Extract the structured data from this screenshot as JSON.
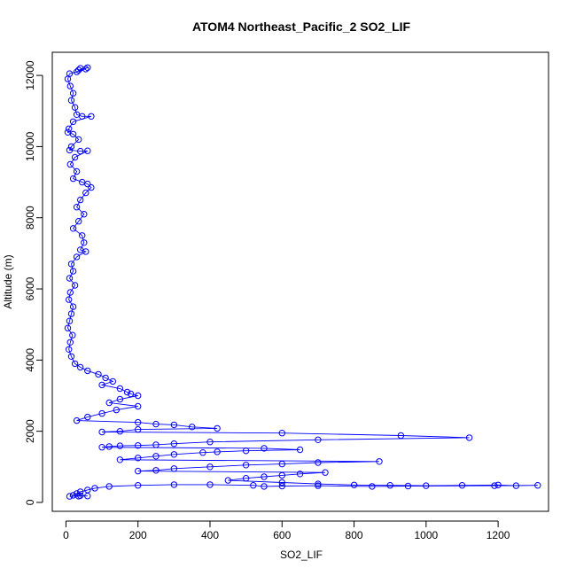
{
  "chart_data": {
    "type": "scatter",
    "title": "ATOM4 Northeast_Pacific_2 SO2_LIF",
    "xlabel": "SO2_LIF",
    "ylabel": "Altitude (m)",
    "xlim": [
      -38,
      1340
    ],
    "ylim": [
      -250,
      12650
    ],
    "xticks": [
      0,
      200,
      400,
      600,
      800,
      1000,
      1200
    ],
    "yticks": [
      0,
      2000,
      4000,
      6000,
      8000,
      10000,
      12000
    ],
    "grid": false,
    "legend": "none",
    "marker": "open-circle",
    "connected": true,
    "colors": {
      "series": "#0000ff",
      "axis": "#000000"
    },
    "series": [
      {
        "description_profile": "vertical profile, near-zero values aloft, spikes below 4000 m",
        "points": [
          [
            40,
            12200
          ],
          [
            55,
            12180
          ],
          [
            35,
            12150
          ],
          [
            60,
            12220
          ],
          [
            30,
            12100
          ],
          [
            10,
            12050
          ],
          [
            5,
            11900
          ],
          [
            12,
            11700
          ],
          [
            20,
            11500
          ],
          [
            15,
            11300
          ],
          [
            25,
            11100
          ],
          [
            30,
            10900
          ],
          [
            45,
            10850
          ],
          [
            70,
            10850
          ],
          [
            20,
            10700
          ],
          [
            8,
            10500
          ],
          [
            5,
            10400
          ],
          [
            20,
            10350
          ],
          [
            35,
            10200
          ],
          [
            15,
            10000
          ],
          [
            10,
            9900
          ],
          [
            40,
            9870
          ],
          [
            60,
            9880
          ],
          [
            25,
            9700
          ],
          [
            12,
            9500
          ],
          [
            30,
            9300
          ],
          [
            20,
            9100
          ],
          [
            45,
            9000
          ],
          [
            60,
            8950
          ],
          [
            70,
            8850
          ],
          [
            55,
            8700
          ],
          [
            40,
            8500
          ],
          [
            30,
            8300
          ],
          [
            50,
            8100
          ],
          [
            35,
            7900
          ],
          [
            20,
            7700
          ],
          [
            45,
            7500
          ],
          [
            50,
            7300
          ],
          [
            40,
            7100
          ],
          [
            55,
            7050
          ],
          [
            30,
            6900
          ],
          [
            15,
            6700
          ],
          [
            20,
            6500
          ],
          [
            10,
            6300
          ],
          [
            25,
            6100
          ],
          [
            12,
            5900
          ],
          [
            8,
            5700
          ],
          [
            20,
            5500
          ],
          [
            15,
            5300
          ],
          [
            10,
            5100
          ],
          [
            5,
            4900
          ],
          [
            18,
            4700
          ],
          [
            12,
            4500
          ],
          [
            8,
            4300
          ],
          [
            15,
            4100
          ],
          [
            25,
            3900
          ],
          [
            40,
            3800
          ],
          [
            60,
            3700
          ],
          [
            90,
            3600
          ],
          [
            110,
            3500
          ],
          [
            130,
            3400
          ],
          [
            100,
            3300
          ],
          [
            150,
            3200
          ],
          [
            170,
            3100
          ],
          [
            180,
            3050
          ],
          [
            200,
            3000
          ],
          [
            150,
            2900
          ],
          [
            120,
            2800
          ],
          [
            200,
            2700
          ],
          [
            140,
            2600
          ],
          [
            100,
            2500
          ],
          [
            60,
            2400
          ],
          [
            30,
            2300
          ],
          [
            200,
            2250
          ],
          [
            250,
            2200
          ],
          [
            300,
            2180
          ],
          [
            350,
            2120
          ],
          [
            420,
            2080
          ],
          [
            200,
            2050
          ],
          [
            150,
            2000
          ],
          [
            100,
            1980
          ],
          [
            600,
            1950
          ],
          [
            930,
            1880
          ],
          [
            1120,
            1820
          ],
          [
            700,
            1760
          ],
          [
            400,
            1700
          ],
          [
            300,
            1650
          ],
          [
            250,
            1620
          ],
          [
            200,
            1600
          ],
          [
            150,
            1590
          ],
          [
            120,
            1570
          ],
          [
            100,
            1550
          ],
          [
            550,
            1520
          ],
          [
            650,
            1480
          ],
          [
            500,
            1450
          ],
          [
            420,
            1420
          ],
          [
            380,
            1400
          ],
          [
            300,
            1350
          ],
          [
            250,
            1300
          ],
          [
            200,
            1250
          ],
          [
            150,
            1200
          ],
          [
            870,
            1150
          ],
          [
            700,
            1120
          ],
          [
            600,
            1080
          ],
          [
            500,
            1050
          ],
          [
            400,
            1000
          ],
          [
            300,
            950
          ],
          [
            250,
            900
          ],
          [
            200,
            880
          ],
          [
            720,
            840
          ],
          [
            650,
            800
          ],
          [
            600,
            760
          ],
          [
            550,
            720
          ],
          [
            500,
            680
          ],
          [
            450,
            620
          ],
          [
            600,
            560
          ],
          [
            700,
            520
          ],
          [
            800,
            490
          ],
          [
            900,
            480
          ],
          [
            1000,
            470
          ],
          [
            1100,
            480
          ],
          [
            1200,
            490
          ],
          [
            1250,
            470
          ],
          [
            1310,
            480
          ],
          [
            1190,
            470
          ],
          [
            950,
            460
          ],
          [
            850,
            450
          ],
          [
            700,
            470
          ],
          [
            600,
            460
          ],
          [
            550,
            450
          ],
          [
            520,
            480
          ],
          [
            400,
            500
          ],
          [
            300,
            500
          ],
          [
            200,
            480
          ],
          [
            120,
            450
          ],
          [
            80,
            400
          ],
          [
            60,
            350
          ],
          [
            40,
            300
          ],
          [
            30,
            250
          ],
          [
            20,
            200
          ],
          [
            40,
            190
          ],
          [
            60,
            180
          ],
          [
            35,
            175
          ],
          [
            10,
            170
          ]
        ]
      }
    ]
  }
}
